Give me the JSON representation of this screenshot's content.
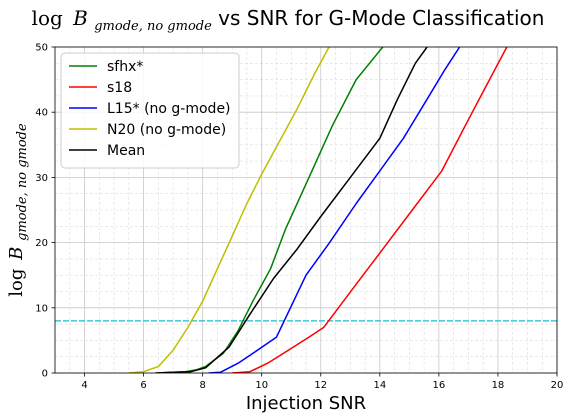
{
  "chart_data": {
    "type": "line",
    "title": {
      "prefix": "log",
      "symbol": "B",
      "subscript": "gmode, no gmode",
      "suffix": " vs SNR for G-Mode Classification"
    },
    "xlabel": "Injection SNR",
    "ylabel": {
      "prefix": "log",
      "symbol": "B",
      "subscript": "gmode, no gmode"
    },
    "xlim": [
      3,
      20
    ],
    "ylim": [
      0,
      50
    ],
    "x_ticks": [
      4,
      6,
      8,
      10,
      12,
      14,
      16,
      18,
      20
    ],
    "y_ticks": [
      0,
      10,
      20,
      30,
      40,
      50
    ],
    "grid": true,
    "minor_grid": true,
    "legend_position": "upper-left",
    "threshold": {
      "y": 8,
      "color": "#17becf",
      "style": "dashed"
    },
    "series": [
      {
        "name": "sfhx*",
        "color": "#008000",
        "x": [
          6.5,
          7.0,
          7.4,
          7.8,
          8.1,
          8.7,
          9.2,
          9.7,
          10.3,
          10.8,
          11.6,
          12.4,
          13.2,
          14.1
        ],
        "y": [
          0,
          0.1,
          0.2,
          0.5,
          1.0,
          3.0,
          6.5,
          11.0,
          16.0,
          22.0,
          30.0,
          38.0,
          45.0,
          50.0
        ]
      },
      {
        "name": "s18",
        "color": "#ff0000",
        "x": [
          9.0,
          9.6,
          10.2,
          10.9,
          11.6,
          12.1,
          13.1,
          14.1,
          15.1,
          16.1,
          16.9,
          17.6,
          18.3
        ],
        "y": [
          0,
          0.2,
          1.5,
          3.5,
          5.5,
          7.0,
          13.0,
          19.0,
          25.0,
          31.0,
          38.0,
          44.0,
          50.0
        ]
      },
      {
        "name": "L15* (no g-mode)",
        "color": "#0000ff",
        "x": [
          8.2,
          8.6,
          9.2,
          9.7,
          10.5,
          11.5,
          12.3,
          13.2,
          14.0,
          14.8,
          15.6,
          16.2,
          16.7
        ],
        "y": [
          0,
          0.1,
          1.5,
          3.0,
          5.5,
          15.0,
          20.0,
          26.0,
          31.0,
          36.0,
          42.0,
          46.5,
          50.0
        ]
      },
      {
        "name": "N20 (no g-mode)",
        "color": "#bfbf00",
        "x": [
          5.5,
          6.0,
          6.5,
          7.0,
          7.5,
          8.0,
          8.5,
          9.0,
          9.5,
          10.0,
          10.6,
          11.2,
          11.8,
          12.4
        ],
        "y": [
          0,
          0.2,
          1.0,
          3.5,
          7.0,
          11.0,
          16.0,
          21.0,
          26.0,
          30.5,
          35.5,
          40.5,
          46.0,
          51.0
        ]
      },
      {
        "name": "Mean",
        "color": "#000000",
        "x": [
          6.4,
          7.0,
          7.6,
          8.1,
          8.9,
          9.6,
          10.4,
          11.2,
          12.0,
          13.0,
          14.0,
          14.6,
          15.2,
          15.6
        ],
        "y": [
          0,
          0.1,
          0.2,
          0.8,
          4.0,
          9.0,
          14.5,
          19.0,
          24.0,
          30.0,
          36.0,
          42.0,
          47.5,
          50.0
        ]
      }
    ]
  }
}
